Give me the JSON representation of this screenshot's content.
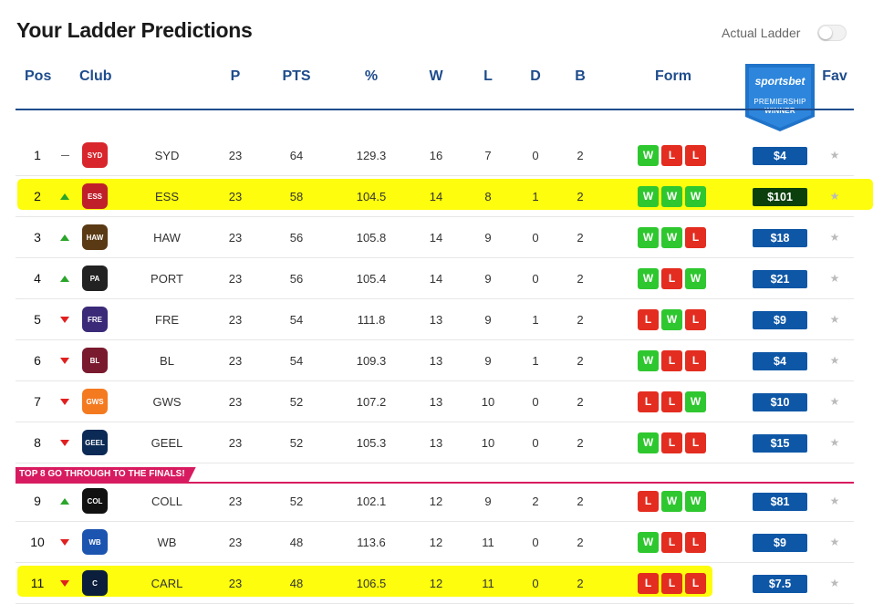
{
  "title": "Your Ladder Predictions",
  "toggle": {
    "label": "Actual Ladder",
    "on": false
  },
  "columns": {
    "pos": "Pos",
    "club": "Club",
    "p": "P",
    "pts": "PTS",
    "pct": "%",
    "w": "W",
    "l": "L",
    "d": "D",
    "b": "B",
    "form": "Form",
    "fav": "Fav"
  },
  "sponsor_badge": {
    "logo": "sportsbet",
    "line1": "PREMIERSHIP",
    "line2": "WINNER"
  },
  "finals_banner": "TOP 8 GO THROUGH TO THE FINALS!",
  "colors": {
    "header_blue": "#1e4c8c",
    "odds_blue": "#0e57a6",
    "form_win": "#2fc72f",
    "form_loss": "#e32d20",
    "highlight": "#fdfd00",
    "finals_pink": "#d81b60"
  },
  "rows": [
    {
      "pos": "1",
      "trend": "same",
      "club": "SYD",
      "logo_icon": "sydney-swans-logo-icon",
      "p": "23",
      "pts": "64",
      "pct": "129.3",
      "w": "16",
      "l": "7",
      "d": "0",
      "b": "2",
      "form": [
        "W",
        "L",
        "L"
      ],
      "odds": "$4",
      "highlight": false
    },
    {
      "pos": "2",
      "trend": "up",
      "club": "ESS",
      "logo_icon": "essendon-logo-icon",
      "p": "23",
      "pts": "58",
      "pct": "104.5",
      "w": "14",
      "l": "8",
      "d": "1",
      "b": "2",
      "form": [
        "W",
        "W",
        "W"
      ],
      "odds": "$101",
      "highlight": true
    },
    {
      "pos": "3",
      "trend": "up",
      "club": "HAW",
      "logo_icon": "hawthorn-logo-icon",
      "p": "23",
      "pts": "56",
      "pct": "105.8",
      "w": "14",
      "l": "9",
      "d": "0",
      "b": "2",
      "form": [
        "W",
        "W",
        "L"
      ],
      "odds": "$18",
      "highlight": false
    },
    {
      "pos": "4",
      "trend": "up",
      "club": "PORT",
      "logo_icon": "port-adelaide-logo-icon",
      "p": "23",
      "pts": "56",
      "pct": "105.4",
      "w": "14",
      "l": "9",
      "d": "0",
      "b": "2",
      "form": [
        "W",
        "L",
        "W"
      ],
      "odds": "$21",
      "highlight": false
    },
    {
      "pos": "5",
      "trend": "down",
      "club": "FRE",
      "logo_icon": "fremantle-logo-icon",
      "p": "23",
      "pts": "54",
      "pct": "111.8",
      "w": "13",
      "l": "9",
      "d": "1",
      "b": "2",
      "form": [
        "L",
        "W",
        "L"
      ],
      "odds": "$9",
      "highlight": false
    },
    {
      "pos": "6",
      "trend": "down",
      "club": "BL",
      "logo_icon": "brisbane-lions-logo-icon",
      "p": "23",
      "pts": "54",
      "pct": "109.3",
      "w": "13",
      "l": "9",
      "d": "1",
      "b": "2",
      "form": [
        "W",
        "L",
        "L"
      ],
      "odds": "$4",
      "highlight": false
    },
    {
      "pos": "7",
      "trend": "down",
      "club": "GWS",
      "logo_icon": "gws-giants-logo-icon",
      "p": "23",
      "pts": "52",
      "pct": "107.2",
      "w": "13",
      "l": "10",
      "d": "0",
      "b": "2",
      "form": [
        "L",
        "L",
        "W"
      ],
      "odds": "$10",
      "highlight": false
    },
    {
      "pos": "8",
      "trend": "down",
      "club": "GEEL",
      "logo_icon": "geelong-logo-icon",
      "p": "23",
      "pts": "52",
      "pct": "105.3",
      "w": "13",
      "l": "10",
      "d": "0",
      "b": "2",
      "form": [
        "W",
        "L",
        "L"
      ],
      "odds": "$15",
      "highlight": false
    },
    {
      "pos": "9",
      "trend": "up",
      "club": "COLL",
      "logo_icon": "collingwood-logo-icon",
      "p": "23",
      "pts": "52",
      "pct": "102.1",
      "w": "12",
      "l": "9",
      "d": "2",
      "b": "2",
      "form": [
        "L",
        "W",
        "W"
      ],
      "odds": "$81",
      "highlight": false
    },
    {
      "pos": "10",
      "trend": "down",
      "club": "WB",
      "logo_icon": "western-bulldogs-logo-icon",
      "p": "23",
      "pts": "48",
      "pct": "113.6",
      "w": "12",
      "l": "11",
      "d": "0",
      "b": "2",
      "form": [
        "W",
        "L",
        "L"
      ],
      "odds": "$9",
      "highlight": false
    },
    {
      "pos": "11",
      "trend": "down",
      "club": "CARL",
      "logo_icon": "carlton-logo-icon",
      "p": "23",
      "pts": "48",
      "pct": "106.5",
      "w": "12",
      "l": "11",
      "d": "0",
      "b": "2",
      "form": [
        "L",
        "L",
        "L"
      ],
      "odds": "$7.5",
      "highlight": true
    }
  ]
}
